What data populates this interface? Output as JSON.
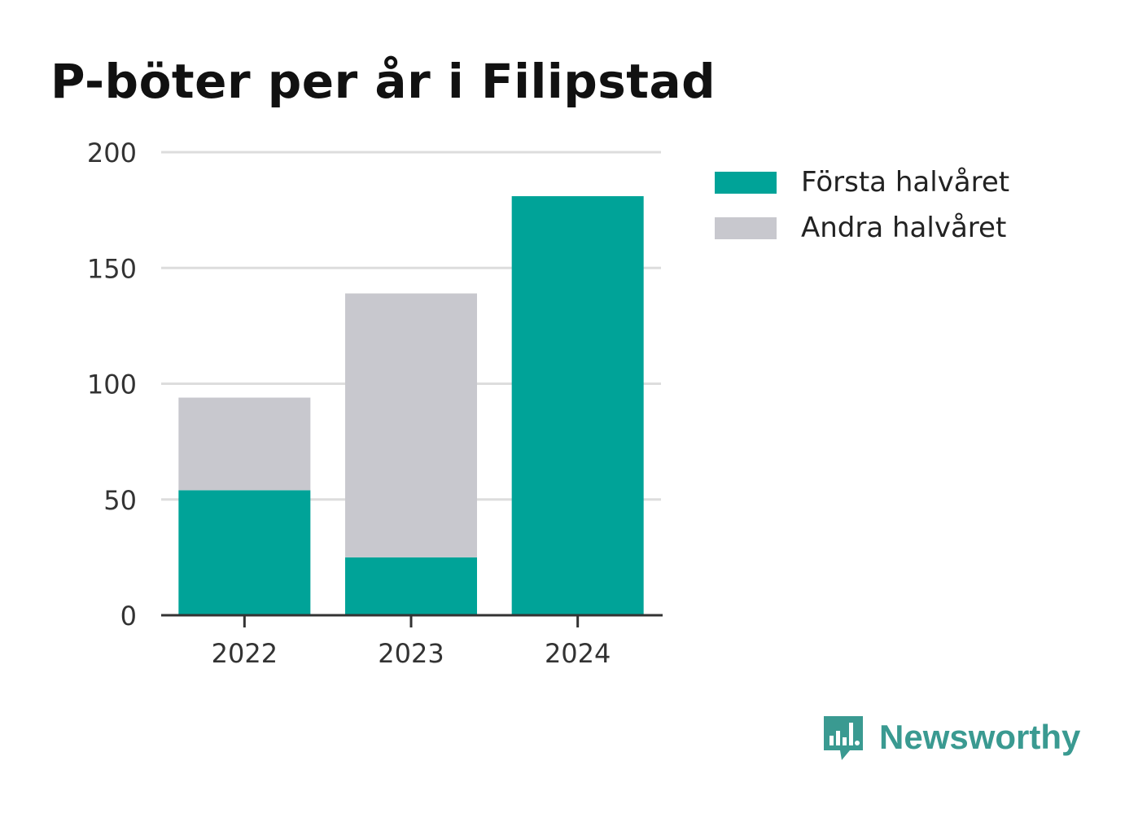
{
  "colors": {
    "first_half": "#00a398",
    "second_half": "#c8c8ce",
    "grid": "#dddddd",
    "axis": "#333333",
    "brand": "#3a9a91"
  },
  "chart_data": {
    "type": "bar",
    "stacked": true,
    "title": "P-böter per år i Filipstad",
    "xlabel": "",
    "ylabel": "",
    "categories": [
      "2022",
      "2023",
      "2024"
    ],
    "series": [
      {
        "name": "Första halvåret",
        "values": [
          54,
          25,
          181
        ]
      },
      {
        "name": "Andra halvåret",
        "values": [
          40,
          114,
          0
        ]
      }
    ],
    "ylim": [
      0,
      200
    ],
    "yticks": [
      0,
      50,
      100,
      150,
      200
    ],
    "grid": true,
    "legend_position": "right"
  },
  "brand": {
    "name": "Newsworthy",
    "icon": "newsworthy-logo-icon"
  }
}
